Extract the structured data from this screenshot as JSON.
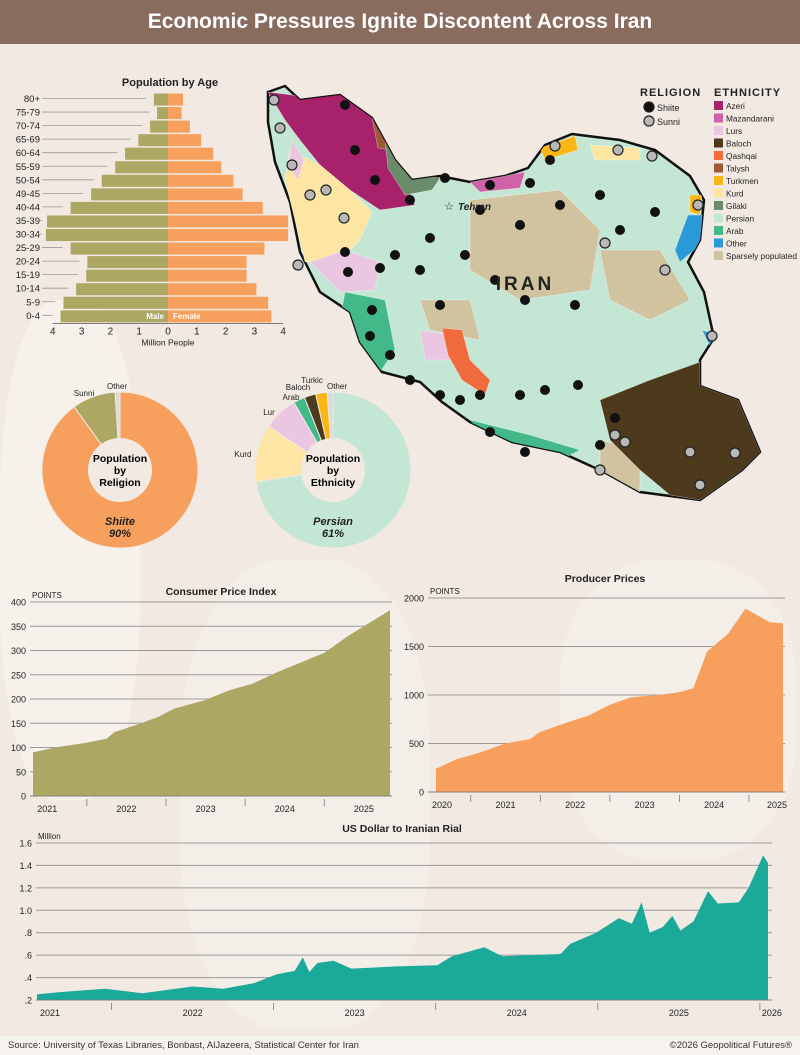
{
  "header": {
    "title": "Economic Pressures Ignite Discontent Across Iran"
  },
  "colors": {
    "male": "#aca763",
    "female": "#f7a05e",
    "cpi": "#aca763",
    "ppi": "#f7a05e",
    "rial": "#1ba99a",
    "header": "#8a6c5e"
  },
  "map": {
    "country_label": "IRAN",
    "capital_label": "Tehran",
    "religion_title": "RELIGION",
    "religion_legend": [
      {
        "label": "Shiite",
        "color": "#111111"
      },
      {
        "label": "Sunni",
        "color": "#b8b8b8"
      }
    ],
    "ethnicity_title": "ETHNICITY",
    "ethnicity_legend": [
      {
        "label": "Azeri",
        "color": "#a8226b"
      },
      {
        "label": "Mazandarani",
        "color": "#cf63a8"
      },
      {
        "label": "Lurs",
        "color": "#ebc6e0"
      },
      {
        "label": "Baloch",
        "color": "#4d3a1c"
      },
      {
        "label": "Qashqai",
        "color": "#f26b3c"
      },
      {
        "label": "Talysh",
        "color": "#9c5a34"
      },
      {
        "label": "Turkmen",
        "color": "#fbb615"
      },
      {
        "label": "Kurd",
        "color": "#fde5a3"
      },
      {
        "label": "Gilaki",
        "color": "#6b8c6b"
      },
      {
        "label": "Persian",
        "color": "#c4e6d4"
      },
      {
        "label": "Arab",
        "color": "#43b98a"
      },
      {
        "label": "Other",
        "color": "#2a9ad8"
      },
      {
        "label": "Sparsely populated",
        "color": "#d1c3a0"
      }
    ]
  },
  "chart_data": [
    {
      "type": "bar",
      "title": "Population by Age",
      "xlabel": "Million People",
      "orientation": "horizontal-pyramid",
      "xlim": [
        -4,
        4
      ],
      "xticks": [
        "4",
        "3",
        "2",
        "1",
        "0",
        "1",
        "2",
        "3",
        "4"
      ],
      "categories": [
        "80+",
        "75-79",
        "70-74",
        "65-69",
        "60-64",
        "55-59",
        "50-54",
        "49-45",
        "40-44",
        "35-39",
        "30-34",
        "25-29",
        "20-24",
        "15-19",
        "10-14",
        "5-9",
        "0-4"
      ],
      "series": [
        {
          "name": "Male",
          "values": [
            0.49,
            0.38,
            0.62,
            1.03,
            1.49,
            1.83,
            2.3,
            2.67,
            3.38,
            4.2,
            4.24,
            3.38,
            2.8,
            2.84,
            3.19,
            3.63,
            3.73
          ]
        },
        {
          "name": "Female",
          "values": [
            0.52,
            0.47,
            0.76,
            1.15,
            1.57,
            1.85,
            2.27,
            2.59,
            3.29,
            4.17,
            4.17,
            3.35,
            2.73,
            2.73,
            3.07,
            3.48,
            3.59
          ]
        }
      ]
    },
    {
      "type": "pie",
      "title": "Population by Religion",
      "center_label": "Shiite",
      "center_value": "90%",
      "slices": [
        {
          "label": "Shiite",
          "value": 90,
          "color": "#f7a05e"
        },
        {
          "label": "Sunni",
          "value": 9,
          "color": "#aca763"
        },
        {
          "label": "Other",
          "value": 1,
          "color": "#d6dbe0"
        }
      ]
    },
    {
      "type": "pie",
      "title": "Population by Ethnicity",
      "center_label": "Persian",
      "center_value": "61%",
      "slices": [
        {
          "label": "Persian",
          "value": 61,
          "color": "#c4e6d4"
        },
        {
          "label": "Kurd",
          "value": 10,
          "color": "#fde5a3"
        },
        {
          "label": "Lur",
          "value": 6,
          "color": "#ebc6e0"
        },
        {
          "label": "Arab",
          "value": 2,
          "color": "#43b98a"
        },
        {
          "label": "Baloch",
          "value": 2,
          "color": "#4d3a1c"
        },
        {
          "label": "Turkic",
          "value": 2,
          "color": "#fbb615"
        },
        {
          "label": "Other",
          "value": 1,
          "color": "#d6dbe0"
        }
      ]
    },
    {
      "type": "area",
      "title": "Consumer Price Index",
      "ylabel": "POINTS",
      "ylim": [
        0,
        400
      ],
      "yticks": [
        0,
        50,
        100,
        150,
        200,
        250,
        300,
        350,
        400
      ],
      "grid": true,
      "xticks": [
        "2021",
        "2022",
        "2023",
        "2024",
        "2025"
      ],
      "points": [
        [
          2021.32,
          90
        ],
        [
          2021.6,
          100
        ],
        [
          2022.0,
          110
        ],
        [
          2022.25,
          118
        ],
        [
          2022.35,
          132
        ],
        [
          2022.6,
          145
        ],
        [
          2022.9,
          163
        ],
        [
          2023.1,
          180
        ],
        [
          2023.5,
          198
        ],
        [
          2023.8,
          218
        ],
        [
          2024.1,
          232
        ],
        [
          2024.4,
          255
        ],
        [
          2024.7,
          275
        ],
        [
          2025.0,
          295
        ],
        [
          2025.3,
          330
        ],
        [
          2025.83,
          383
        ]
      ]
    },
    {
      "type": "area",
      "title": "Producer Prices",
      "ylabel": "POINTS",
      "ylim": [
        0,
        2000
      ],
      "yticks": [
        0,
        500,
        1000,
        1500,
        2000
      ],
      "grid": true,
      "xticks": [
        "2020",
        "2021",
        "2022",
        "2023",
        "2024",
        "2025"
      ],
      "points": [
        [
          2020.5,
          240
        ],
        [
          2020.8,
          340
        ],
        [
          2021.1,
          400
        ],
        [
          2021.5,
          500
        ],
        [
          2021.85,
          545
        ],
        [
          2022.0,
          620
        ],
        [
          2022.4,
          720
        ],
        [
          2022.7,
          790
        ],
        [
          2023.0,
          900
        ],
        [
          2023.3,
          975
        ],
        [
          2023.7,
          1000
        ],
        [
          2024.0,
          1030
        ],
        [
          2024.2,
          1070
        ],
        [
          2024.4,
          1450
        ],
        [
          2024.7,
          1630
        ],
        [
          2024.95,
          1890
        ],
        [
          2025.3,
          1750
        ],
        [
          2025.49,
          1740
        ]
      ]
    },
    {
      "type": "area",
      "title": "US Dollar to Iranian Rial",
      "ylabel": "Million",
      "ylim": [
        0.2,
        1.6
      ],
      "yticks": [
        ".2",
        ".4",
        ".6",
        ".8",
        "1.0",
        "1.2",
        "1.4",
        "1.6"
      ],
      "grid": true,
      "xticks": [
        "2021",
        "2022",
        "2023",
        "2024",
        "2025",
        "2026"
      ],
      "points": [
        [
          2021.54,
          0.25
        ],
        [
          2021.68,
          0.27
        ],
        [
          2021.96,
          0.3
        ],
        [
          2022.19,
          0.26
        ],
        [
          2022.5,
          0.32
        ],
        [
          2022.69,
          0.3
        ],
        [
          2022.88,
          0.35
        ],
        [
          2023.02,
          0.43
        ],
        [
          2023.13,
          0.46
        ],
        [
          2023.18,
          0.58
        ],
        [
          2023.22,
          0.45
        ],
        [
          2023.27,
          0.53
        ],
        [
          2023.37,
          0.55
        ],
        [
          2023.48,
          0.48
        ],
        [
          2023.76,
          0.5
        ],
        [
          2024.01,
          0.51
        ],
        [
          2024.1,
          0.59
        ],
        [
          2024.3,
          0.67
        ],
        [
          2024.41,
          0.59
        ],
        [
          2024.77,
          0.61
        ],
        [
          2024.83,
          0.7
        ],
        [
          2024.99,
          0.8
        ],
        [
          2025.13,
          0.93
        ],
        [
          2025.21,
          0.88
        ],
        [
          2025.27,
          1.07
        ],
        [
          2025.32,
          0.8
        ],
        [
          2025.4,
          0.85
        ],
        [
          2025.46,
          0.95
        ],
        [
          2025.51,
          0.82
        ],
        [
          2025.59,
          0.9
        ],
        [
          2025.68,
          1.17
        ],
        [
          2025.74,
          1.06
        ],
        [
          2025.87,
          1.07
        ],
        [
          2025.93,
          1.2
        ],
        [
          2026.02,
          1.49
        ],
        [
          2026.05,
          1.42
        ]
      ]
    }
  ],
  "footer": {
    "source": "Source: University of Texas Libraries, Bonbast, AlJazeera, Statistical Center for Iran",
    "copyright": "©2026 Geopolitical Futures®"
  }
}
